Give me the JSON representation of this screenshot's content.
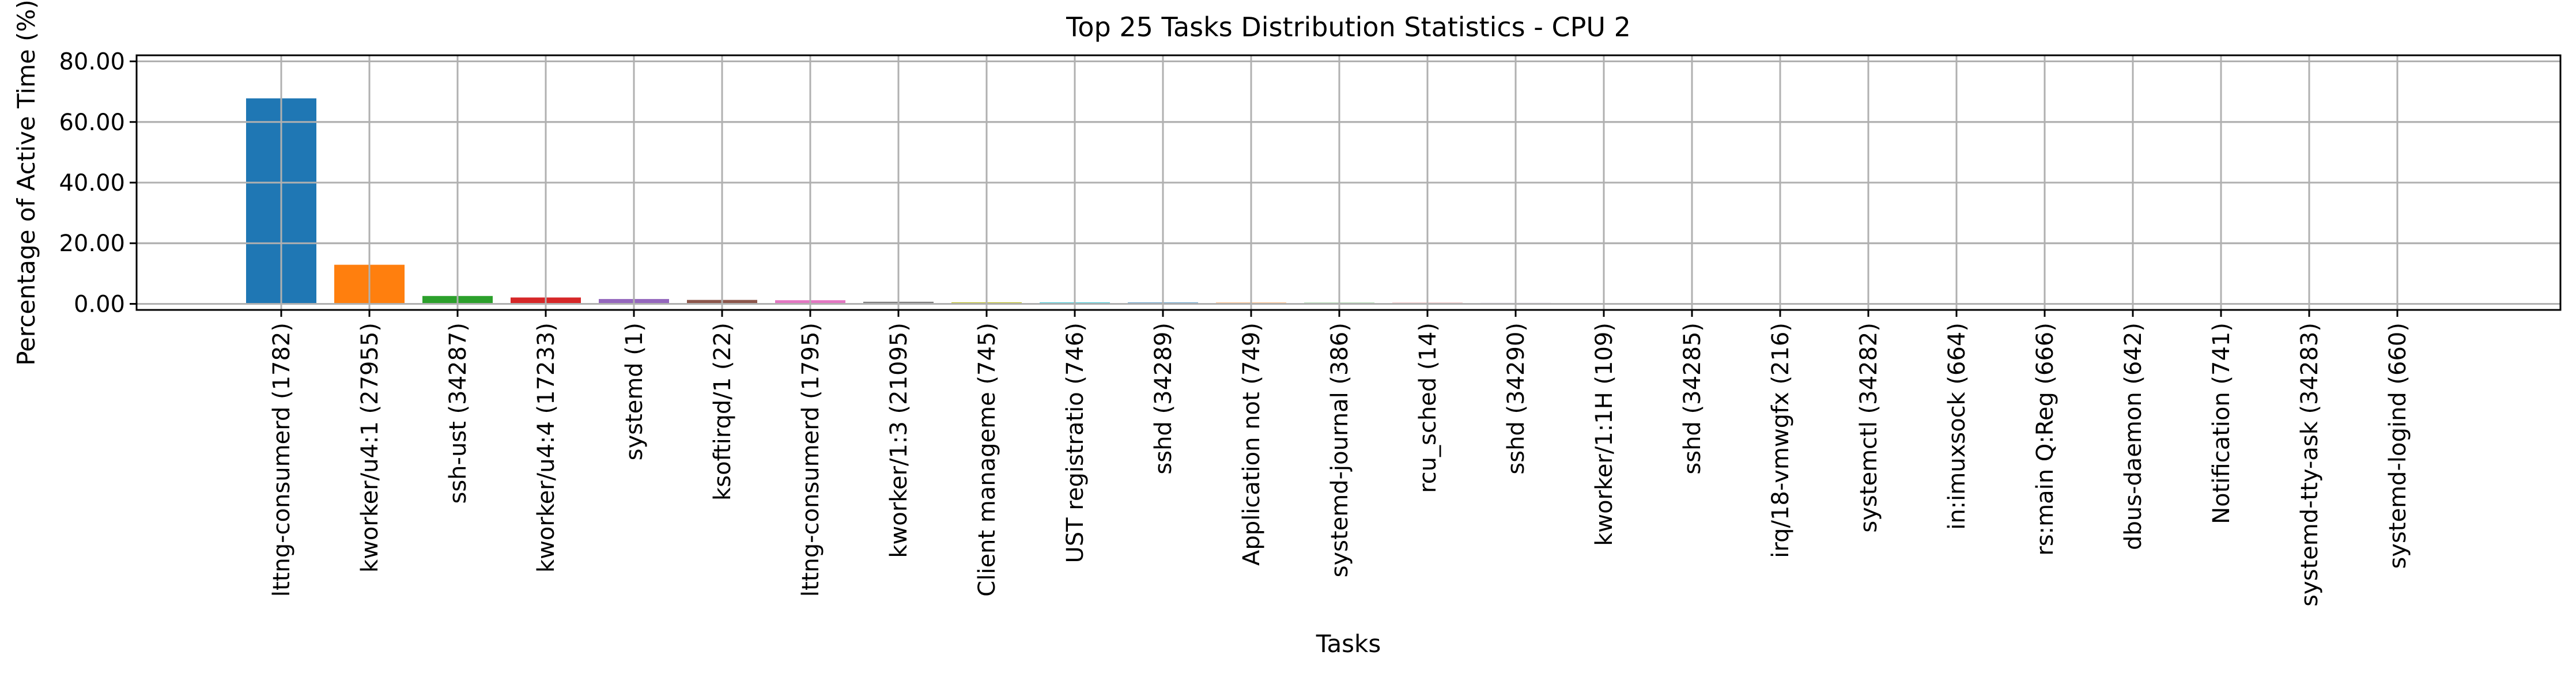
{
  "chart_data": {
    "type": "bar",
    "title": "Top 25 Tasks Distribution Statistics - CPU 2",
    "xlabel": "Tasks",
    "ylabel": "Percentage of Active Time (%)",
    "ylim": [
      -2,
      82
    ],
    "yticks": [
      0,
      20,
      40,
      60,
      80
    ],
    "ytick_labels": [
      "0.00",
      "20.00",
      "40.00",
      "60.00",
      "80.00"
    ],
    "grid": true,
    "categories": [
      "lttng-consumerd (1782)",
      "kworker/u4:1 (27955)",
      "ssh-ust (34287)",
      "kworker/u4:4 (17233)",
      "systemd (1)",
      "ksoftirqd/1 (22)",
      "lttng-consumerd (1795)",
      "kworker/1:3 (21095)",
      "Client manageme (745)",
      "UST registratio (746)",
      "sshd (34289)",
      "Application not (749)",
      "systemd-journal (386)",
      "rcu_sched (14)",
      "sshd (34290)",
      "kworker/1:1H (109)",
      "sshd (34285)",
      "irq/18-vmwgfx (216)",
      "systemctl (34282)",
      "in:imuxsock (664)",
      "rs:main Q:Reg (666)",
      "dbus-daemon (642)",
      "Notification (741)",
      "systemd-tty-ask (34283)",
      "systemd-logind (660)"
    ],
    "values": [
      67.8,
      12.9,
      2.6,
      2.1,
      1.6,
      1.3,
      1.2,
      0.7,
      0.5,
      0.45,
      0.42,
      0.38,
      0.35,
      0.33,
      0.3,
      0.27,
      0.25,
      0.22,
      0.2,
      0.18,
      0.16,
      0.14,
      0.12,
      0.1,
      0.08
    ],
    "colors": [
      "#1f77b4",
      "#ff7f0e",
      "#2ca02c",
      "#d62728",
      "#9467bd",
      "#8c564b",
      "#e377c2",
      "#7f7f7f",
      "#bcbd22",
      "#17becf"
    ]
  }
}
